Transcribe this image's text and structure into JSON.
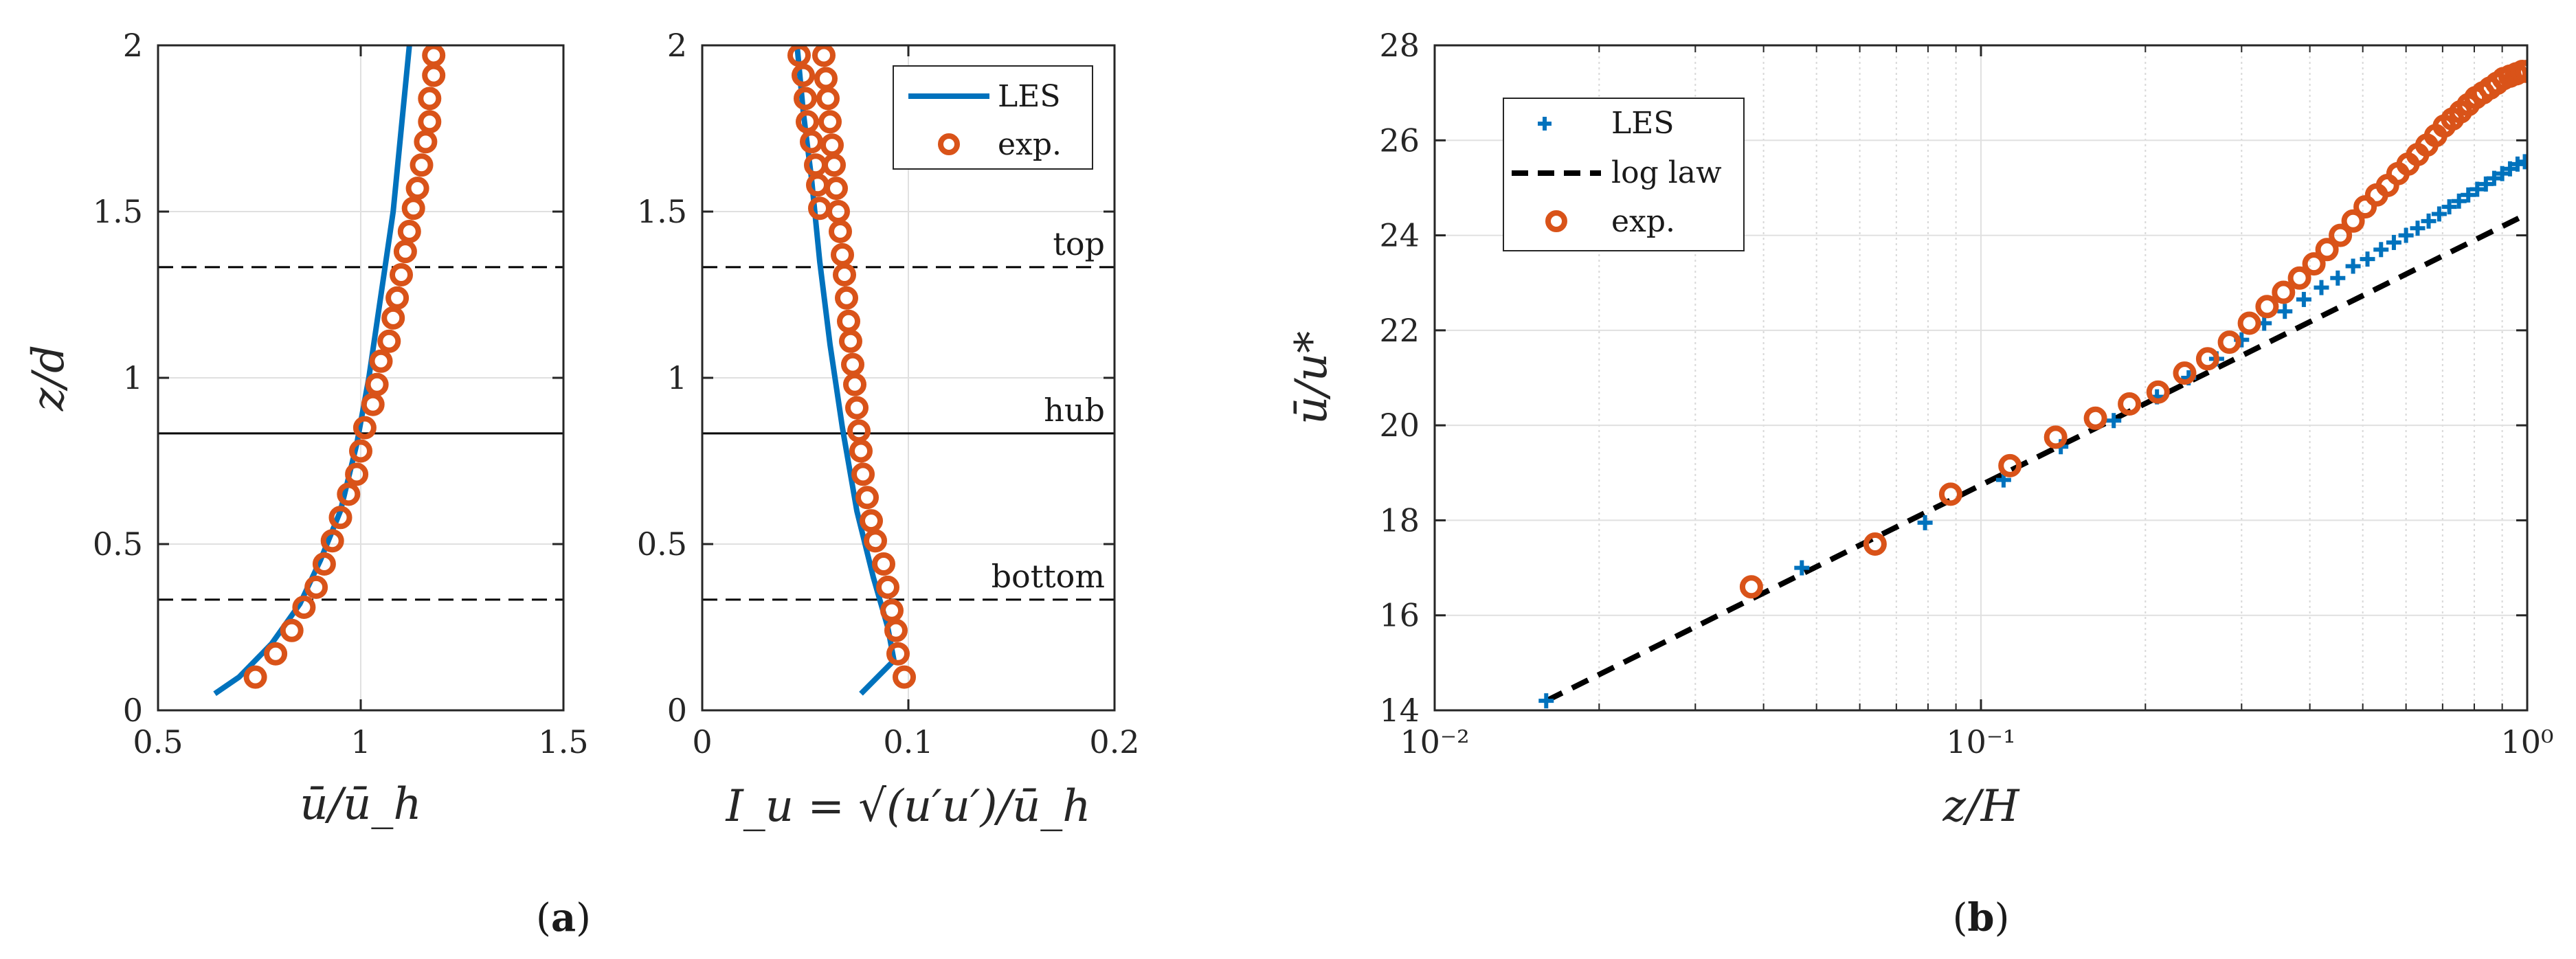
{
  "figure": {
    "panel_a_label": "(a)",
    "panel_a_letter": "a",
    "panel_b_label": "(b)",
    "panel_b_letter": "b"
  },
  "colors": {
    "les": "#0072BD",
    "exp": "#D95319",
    "loglaw": "#000000",
    "grid": "#e0e0e0",
    "axis": "#262626"
  },
  "chart_data": [
    {
      "id": "a1",
      "type": "line",
      "xlabel": "ū/ū_h",
      "ylabel": "z/d",
      "xlim": [
        0.5,
        1.5
      ],
      "ylim": [
        0,
        2
      ],
      "xticks": [
        0.5,
        1,
        1.5
      ],
      "xtick_labels": [
        "0.5",
        "1",
        "1.5"
      ],
      "yticks": [
        0,
        0.5,
        1,
        1.5,
        2
      ],
      "ytick_labels": [
        "0",
        "0.5",
        "1",
        "1.5",
        "2"
      ],
      "grid": true,
      "hlines": [
        {
          "y": 1.333,
          "style": "dashed"
        },
        {
          "y": 0.833,
          "style": "solid"
        },
        {
          "y": 0.333,
          "style": "dashed"
        }
      ],
      "series": [
        {
          "name": "LES",
          "kind": "line",
          "x": [
            0.64,
            0.7,
            0.78,
            0.85,
            0.9,
            0.95,
            0.99,
            1.02,
            1.05,
            1.08,
            1.1,
            1.12
          ],
          "y": [
            0.05,
            0.1,
            0.2,
            0.32,
            0.45,
            0.6,
            0.8,
            1.0,
            1.25,
            1.5,
            1.75,
            2.0
          ]
        },
        {
          "name": "exp.",
          "kind": "marker",
          "x": [
            0.74,
            0.79,
            0.83,
            0.86,
            0.89,
            0.91,
            0.93,
            0.95,
            0.97,
            0.99,
            1.0,
            1.01,
            1.03,
            1.04,
            1.05,
            1.07,
            1.08,
            1.09,
            1.1,
            1.11,
            1.12,
            1.13,
            1.14,
            1.15,
            1.16,
            1.17,
            1.17,
            1.18,
            1.18
          ],
          "y": [
            0.1,
            0.17,
            0.24,
            0.31,
            0.37,
            0.44,
            0.51,
            0.58,
            0.65,
            0.71,
            0.78,
            0.85,
            0.92,
            0.98,
            1.05,
            1.11,
            1.18,
            1.24,
            1.31,
            1.38,
            1.44,
            1.51,
            1.57,
            1.64,
            1.71,
            1.77,
            1.84,
            1.91,
            1.97
          ]
        }
      ]
    },
    {
      "id": "a2",
      "type": "line",
      "xlabel": "I_u = √(u′u′)/ū_h",
      "xlim": [
        0,
        0.2
      ],
      "ylim": [
        0,
        2
      ],
      "xticks": [
        0,
        0.1,
        0.2
      ],
      "xtick_labels": [
        "0",
        "0.1",
        "0.2"
      ],
      "yticks": [
        0,
        0.5,
        1,
        1.5,
        2
      ],
      "ytick_labels": [
        "0",
        "0.5",
        "1",
        "1.5",
        "2"
      ],
      "grid": true,
      "hlines": [
        {
          "y": 1.333,
          "style": "dashed",
          "label": "top"
        },
        {
          "y": 0.833,
          "style": "solid",
          "label": "hub"
        },
        {
          "y": 0.333,
          "style": "dashed",
          "label": "bottom"
        }
      ],
      "legend": {
        "position": "top-right",
        "entries": [
          "LES",
          "exp."
        ]
      },
      "series": [
        {
          "name": "LES",
          "kind": "line",
          "x": [
            0.077,
            0.093,
            0.09,
            0.083,
            0.075,
            0.068,
            0.062,
            0.057,
            0.053,
            0.049,
            0.046
          ],
          "y": [
            0.05,
            0.15,
            0.25,
            0.4,
            0.6,
            0.85,
            1.1,
            1.35,
            1.6,
            1.8,
            2.0
          ]
        },
        {
          "name": "exp.",
          "kind": "marker",
          "x": [
            0.098,
            0.095,
            0.094,
            0.092,
            0.09,
            0.088,
            0.084,
            0.082,
            0.08,
            0.078,
            0.077,
            0.076,
            0.075,
            0.074,
            0.073,
            0.072,
            0.071,
            0.07,
            0.069,
            0.068,
            0.067,
            0.066,
            0.065,
            0.064,
            0.063,
            0.062,
            0.061,
            0.06,
            0.059,
            0.057,
            0.056,
            0.055,
            0.053,
            0.051,
            0.05,
            0.049,
            0.047
          ],
          "y": [
            0.1,
            0.17,
            0.24,
            0.3,
            0.37,
            0.44,
            0.51,
            0.57,
            0.64,
            0.71,
            0.78,
            0.84,
            0.91,
            0.98,
            1.04,
            1.11,
            1.17,
            1.24,
            1.31,
            1.37,
            1.44,
            1.5,
            1.57,
            1.64,
            1.7,
            1.77,
            1.84,
            1.9,
            1.97,
            1.51,
            1.58,
            1.64,
            1.71,
            1.77,
            1.84,
            1.91,
            1.97
          ]
        }
      ]
    },
    {
      "id": "b",
      "type": "scatter",
      "xscale": "log",
      "xlabel": "z/H",
      "ylabel": "ū/u*",
      "xlim": [
        0.01,
        1
      ],
      "ylim": [
        14,
        28
      ],
      "xticks": [
        0.01,
        0.1,
        1
      ],
      "xtick_labels": [
        "10⁻²",
        "10⁻¹",
        "10⁰"
      ],
      "yticks": [
        14,
        16,
        18,
        20,
        22,
        24,
        26,
        28
      ],
      "ytick_labels": [
        "14",
        "16",
        "18",
        "20",
        "22",
        "24",
        "26",
        "28"
      ],
      "grid": true,
      "legend": {
        "position": "top-left",
        "entries": [
          "LES",
          "log law",
          "exp."
        ]
      },
      "series": [
        {
          "name": "LES",
          "kind": "plus",
          "x": [
            0.016,
            0.047,
            0.079,
            0.11,
            0.14,
            0.175,
            0.21,
            0.24,
            0.27,
            0.3,
            0.33,
            0.36,
            0.39,
            0.42,
            0.45,
            0.48,
            0.51,
            0.54,
            0.57,
            0.6,
            0.63,
            0.66,
            0.69,
            0.72,
            0.75,
            0.78,
            0.81,
            0.84,
            0.87,
            0.9,
            0.93,
            0.96,
            0.99
          ],
          "y": [
            14.2,
            17.0,
            17.95,
            18.85,
            19.55,
            20.1,
            20.6,
            21.0,
            21.4,
            21.8,
            22.15,
            22.4,
            22.65,
            22.9,
            23.1,
            23.35,
            23.5,
            23.7,
            23.85,
            24.0,
            24.15,
            24.3,
            24.45,
            24.6,
            24.72,
            24.85,
            24.97,
            25.08,
            25.2,
            25.3,
            25.4,
            25.5,
            25.55
          ]
        },
        {
          "name": "log law",
          "kind": "dashed-line",
          "x": [
            0.016,
            1.0
          ],
          "y": [
            14.2,
            24.45
          ]
        },
        {
          "name": "exp.",
          "kind": "marker",
          "x": [
            0.038,
            0.064,
            0.088,
            0.113,
            0.137,
            0.162,
            0.187,
            0.211,
            0.236,
            0.26,
            0.285,
            0.31,
            0.334,
            0.358,
            0.383,
            0.407,
            0.43,
            0.455,
            0.48,
            0.505,
            0.53,
            0.555,
            0.58,
            0.605,
            0.63,
            0.655,
            0.68,
            0.705,
            0.73,
            0.755,
            0.78,
            0.805,
            0.83,
            0.855,
            0.88,
            0.905,
            0.93,
            0.955,
            0.98,
            1.0
          ],
          "y": [
            16.6,
            17.5,
            18.55,
            19.15,
            19.75,
            20.15,
            20.45,
            20.7,
            21.1,
            21.4,
            21.75,
            22.15,
            22.5,
            22.8,
            23.1,
            23.4,
            23.7,
            24.0,
            24.3,
            24.6,
            24.85,
            25.05,
            25.3,
            25.5,
            25.7,
            25.9,
            26.1,
            26.3,
            26.45,
            26.6,
            26.75,
            26.9,
            27.0,
            27.1,
            27.2,
            27.3,
            27.35,
            27.4,
            27.45,
            27.45
          ]
        }
      ]
    }
  ]
}
